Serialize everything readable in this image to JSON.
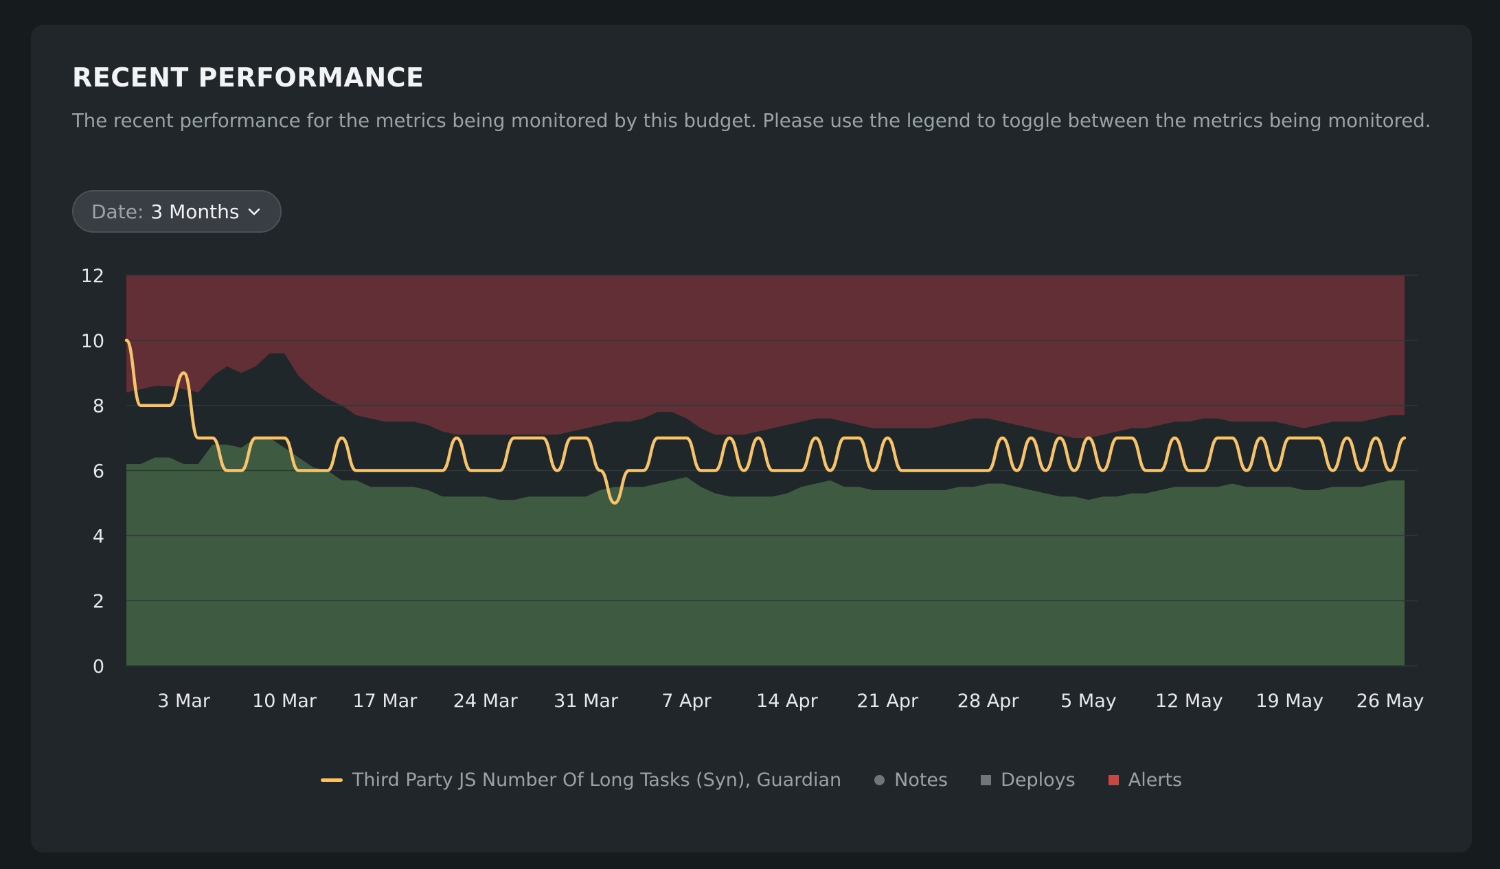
{
  "card": {
    "title": "RECENT PERFORMANCE",
    "description": "The recent performance for the metrics being monitored by this budget. Please use the legend to toggle between the metrics being monitored."
  },
  "date_filter": {
    "label": "Date:",
    "value": "3 Months",
    "icon": "chevron-down-icon"
  },
  "colors": {
    "good_zone": "#3e5a40",
    "warning_zone": "#1f272b",
    "bad_zone": "#612f35",
    "series": "#f7c46c",
    "grid": "#2f373b",
    "axis_text": "#e6e8e9",
    "notes": "#6f777c",
    "deploys": "#6f777c",
    "alerts": "#c64845"
  },
  "chart_data": {
    "type": "line",
    "title": "",
    "xlabel": "",
    "ylabel": "",
    "ylim": [
      0,
      12
    ],
    "y_ticks": [
      0,
      2,
      4,
      6,
      8,
      10,
      12
    ],
    "x_ticks": [
      "3 Mar",
      "10 Mar",
      "17 Mar",
      "24 Mar",
      "31 Mar",
      "7 Apr",
      "14 Apr",
      "21 Apr",
      "28 Apr",
      "5 May",
      "12 May",
      "19 May",
      "26 May"
    ],
    "x_tick_days": [
      4,
      11,
      18,
      25,
      32,
      39,
      46,
      53,
      60,
      67,
      74,
      81,
      88
    ],
    "grid": true,
    "legend_position": "bottom-center",
    "x_days": [
      0,
      1,
      2,
      3,
      4,
      5,
      6,
      7,
      8,
      9,
      10,
      11,
      12,
      13,
      14,
      15,
      16,
      17,
      18,
      19,
      20,
      21,
      22,
      23,
      24,
      25,
      26,
      27,
      28,
      29,
      30,
      31,
      32,
      33,
      34,
      35,
      36,
      37,
      38,
      39,
      40,
      41,
      42,
      43,
      44,
      45,
      46,
      47,
      48,
      49,
      50,
      51,
      52,
      53,
      54,
      55,
      56,
      57,
      58,
      59,
      60,
      61,
      62,
      63,
      64,
      65,
      66,
      67,
      68,
      69,
      70,
      71,
      72,
      73,
      74,
      75,
      76,
      77,
      78,
      79,
      80,
      81,
      82,
      83,
      84,
      85,
      86,
      87,
      88,
      89
    ],
    "series": [
      {
        "name": "Third Party JS Number Of Long Tasks (Syn), Guardian",
        "values": [
          10,
          8,
          8,
          8,
          9,
          7,
          7,
          6,
          6,
          7,
          7,
          7,
          6,
          6,
          6,
          7,
          6,
          6,
          6,
          6,
          6,
          6,
          6,
          7,
          6,
          6,
          6,
          7,
          7,
          7,
          6,
          7,
          7,
          6,
          5,
          6,
          6,
          7,
          7,
          7,
          6,
          6,
          7,
          6,
          7,
          6,
          6,
          6,
          7,
          6,
          7,
          7,
          6,
          7,
          6,
          6,
          6,
          6,
          6,
          6,
          6,
          7,
          6,
          7,
          6,
          7,
          6,
          7,
          6,
          7,
          7,
          6,
          6,
          7,
          6,
          6,
          7,
          7,
          6,
          7,
          6,
          7,
          7,
          7,
          6,
          7,
          6,
          7,
          6,
          7
        ]
      }
    ],
    "good_zone_upper": [
      6.2,
      6.2,
      6.4,
      6.4,
      6.2,
      6.2,
      6.8,
      6.8,
      6.7,
      7.0,
      7.0,
      6.7,
      6.4,
      6.1,
      6.0,
      5.7,
      5.7,
      5.5,
      5.5,
      5.5,
      5.5,
      5.4,
      5.2,
      5.2,
      5.2,
      5.2,
      5.1,
      5.1,
      5.2,
      5.2,
      5.2,
      5.2,
      5.2,
      5.4,
      5.5,
      5.5,
      5.5,
      5.6,
      5.7,
      5.8,
      5.5,
      5.3,
      5.2,
      5.2,
      5.2,
      5.2,
      5.3,
      5.5,
      5.6,
      5.7,
      5.5,
      5.5,
      5.4,
      5.4,
      5.4,
      5.4,
      5.4,
      5.4,
      5.5,
      5.5,
      5.6,
      5.6,
      5.5,
      5.4,
      5.3,
      5.2,
      5.2,
      5.1,
      5.2,
      5.2,
      5.3,
      5.3,
      5.4,
      5.5,
      5.5,
      5.5,
      5.5,
      5.6,
      5.5,
      5.5,
      5.5,
      5.5,
      5.4,
      5.4,
      5.5,
      5.5,
      5.5,
      5.6,
      5.7,
      5.7
    ],
    "warning_zone_upper": [
      8.4,
      8.5,
      8.6,
      8.6,
      8.5,
      8.4,
      8.9,
      9.2,
      9.0,
      9.2,
      9.6,
      9.6,
      8.9,
      8.5,
      8.2,
      8.0,
      7.7,
      7.6,
      7.5,
      7.5,
      7.5,
      7.4,
      7.2,
      7.1,
      7.1,
      7.1,
      7.1,
      7.1,
      7.1,
      7.1,
      7.1,
      7.2,
      7.3,
      7.4,
      7.5,
      7.5,
      7.6,
      7.8,
      7.8,
      7.6,
      7.3,
      7.1,
      7.1,
      7.1,
      7.2,
      7.3,
      7.4,
      7.5,
      7.6,
      7.6,
      7.5,
      7.4,
      7.3,
      7.3,
      7.3,
      7.3,
      7.3,
      7.4,
      7.5,
      7.6,
      7.6,
      7.5,
      7.4,
      7.3,
      7.2,
      7.1,
      7.0,
      7.0,
      7.1,
      7.2,
      7.3,
      7.3,
      7.4,
      7.5,
      7.5,
      7.6,
      7.6,
      7.5,
      7.5,
      7.5,
      7.5,
      7.4,
      7.3,
      7.4,
      7.5,
      7.5,
      7.5,
      7.6,
      7.7,
      7.7
    ]
  },
  "legend": {
    "items": [
      {
        "label": "Third Party JS Number Of Long Tasks (Syn), Guardian",
        "kind": "line",
        "color": "#f7c46c"
      },
      {
        "label": "Notes",
        "kind": "dot",
        "color": "#6f777c"
      },
      {
        "label": "Deploys",
        "kind": "square",
        "color": "#6f777c"
      },
      {
        "label": "Alerts",
        "kind": "square",
        "color": "#c64845"
      }
    ]
  }
}
